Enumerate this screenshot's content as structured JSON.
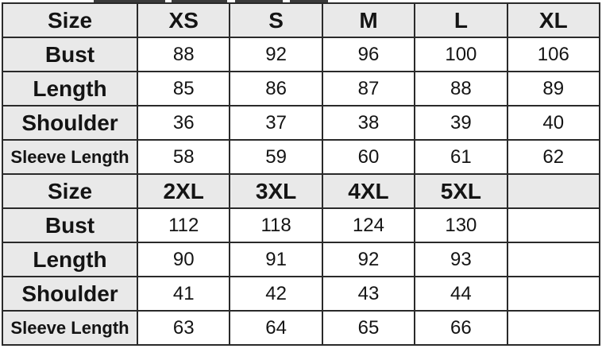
{
  "table": {
    "sections": [
      {
        "header": {
          "label": "Size",
          "sizes": [
            "XS",
            "S",
            "M",
            "L",
            "XL"
          ]
        },
        "rows": [
          {
            "label": "Bust",
            "values": [
              "88",
              "92",
              "96",
              "100",
              "106"
            ]
          },
          {
            "label": "Length",
            "values": [
              "85",
              "86",
              "87",
              "88",
              "89"
            ]
          },
          {
            "label": "Shoulder",
            "values": [
              "36",
              "37",
              "38",
              "39",
              "40"
            ]
          },
          {
            "label": "Sleeve Length",
            "values": [
              "58",
              "59",
              "60",
              "61",
              "62"
            ]
          }
        ]
      },
      {
        "header": {
          "label": "Size",
          "sizes": [
            "2XL",
            "3XL",
            "4XL",
            "5XL",
            ""
          ]
        },
        "rows": [
          {
            "label": "Bust",
            "values": [
              "112",
              "118",
              "124",
              "130",
              ""
            ]
          },
          {
            "label": "Length",
            "values": [
              "90",
              "91",
              "92",
              "93",
              ""
            ]
          },
          {
            "label": "Shoulder",
            "values": [
              "41",
              "42",
              "43",
              "44",
              ""
            ]
          },
          {
            "label": "Sleeve Length",
            "values": [
              "63",
              "64",
              "65",
              "66",
              ""
            ]
          }
        ]
      }
    ]
  },
  "colors": {
    "header_bg": "#e9e9e9",
    "cell_bg": "#ffffff",
    "border": "#2a2a2a",
    "text": "#141414"
  }
}
